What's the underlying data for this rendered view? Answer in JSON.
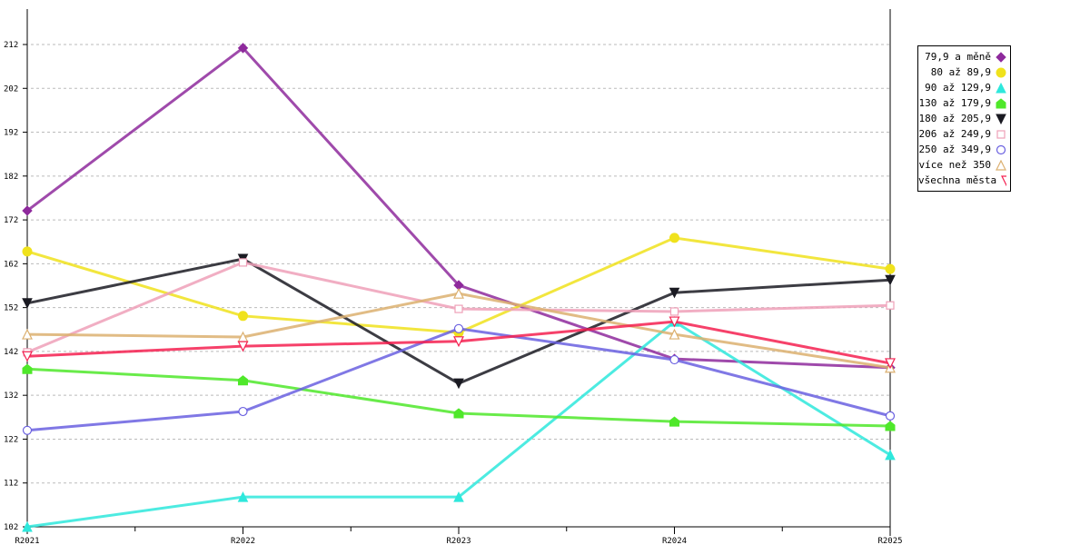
{
  "chart_data": {
    "type": "line",
    "title": "",
    "xlabel": "",
    "ylabel": "",
    "categories": [
      "R2021",
      "R2022",
      "R2023",
      "R2024",
      "R2025"
    ],
    "ylim": [
      102,
      222
    ],
    "yticks": [
      102,
      112,
      122,
      132,
      142,
      152,
      162,
      172,
      182,
      192,
      202,
      212
    ],
    "grid": true,
    "legend_placement": "right",
    "series": [
      {
        "name": "79,9 a měně",
        "color": "#8e2a9c",
        "marker": "diamond",
        "values": [
          174.1,
          211.2,
          157.1,
          140.3,
          138.3
        ]
      },
      {
        "name": "80 až 89,9",
        "color": "#f0e21c",
        "marker": "circle",
        "values": [
          164.8,
          150.1,
          146.3,
          167.9,
          160.8
        ]
      },
      {
        "name": "90 až 129,9",
        "color": "#2ee8dc",
        "marker": "triangle",
        "values": [
          102.0,
          108.8,
          108.8,
          148.8,
          118.4
        ]
      },
      {
        "name": "130 až 179,9",
        "color": "#4fe82a",
        "marker": "house",
        "values": [
          138.0,
          135.4,
          127.9,
          126.0,
          125.0
        ]
      },
      {
        "name": "180 až 205,9",
        "color": "#1a1a22",
        "marker": "triangle-down",
        "values": [
          153.0,
          163.1,
          134.7,
          155.4,
          158.3
        ]
      },
      {
        "name": "206 až 249,9",
        "color": "#eea0b8",
        "marker": "square-open",
        "values": [
          141.8,
          162.3,
          151.7,
          151.1,
          152.5
        ]
      },
      {
        "name": "250 až 349,9",
        "color": "#6a60e0",
        "marker": "circle-open",
        "values": [
          124.0,
          128.3,
          147.2,
          140.1,
          127.3
        ]
      },
      {
        "name": "více než 350",
        "color": "#dcb070",
        "marker": "triangle-open",
        "values": [
          145.9,
          145.3,
          155.2,
          145.9,
          138.3
        ]
      },
      {
        "name": "všechna města",
        "color": "#f42050",
        "marker": "triangle-down-open",
        "values": [
          140.9,
          143.2,
          144.3,
          148.8,
          139.3
        ]
      }
    ]
  }
}
